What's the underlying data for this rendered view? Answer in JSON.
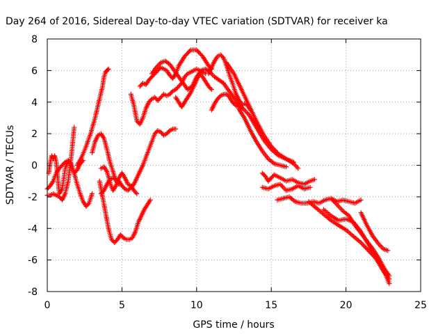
{
  "chart_data": {
    "type": "scatter",
    "title": "Day 264 of 2016, Sidereal Day-to-day VTEC variation (SDTVAR) for receiver ka",
    "xlabel": "GPS time / hours",
    "ylabel": "SDTVAR / TECUs",
    "xlim": [
      0,
      25
    ],
    "ylim": [
      -8,
      8
    ],
    "xticks": [
      0,
      5,
      10,
      15,
      20,
      25
    ],
    "yticks": [
      -8,
      -6,
      -4,
      -2,
      0,
      2,
      4,
      6,
      8
    ],
    "grid": true,
    "marker": "plus",
    "color": "#ff0000",
    "series": [
      {
        "x": [
          0.0,
          0.2,
          0.4,
          0.6,
          0.8,
          1.0,
          1.2,
          1.4,
          1.6,
          1.8,
          2.0,
          2.2,
          2.4,
          2.6,
          2.8,
          3.0
        ],
        "y": [
          -1.5,
          -1.3,
          -1.0,
          -0.5,
          -0.2,
          0.0,
          0.2,
          0.3,
          0.1,
          -0.5,
          -1.2,
          -1.8,
          -2.3,
          -2.6,
          -2.4,
          -1.8
        ]
      },
      {
        "x": [
          0.0,
          0.2,
          0.4,
          0.6,
          0.8,
          1.0,
          1.2,
          1.4,
          1.6,
          1.8
        ],
        "y": [
          -1.9,
          -1.9,
          -1.8,
          -1.9,
          -2.0,
          -2.2,
          -1.8,
          -1.0,
          0.5,
          2.4
        ]
      },
      {
        "x": [
          0.1,
          0.2,
          0.3,
          0.4,
          0.5,
          0.6,
          0.7,
          0.8,
          1.0,
          1.2,
          1.4,
          1.6,
          1.8,
          2.0,
          2.2,
          2.4
        ],
        "y": [
          -0.5,
          0.2,
          0.6,
          0.4,
          0.6,
          0.2,
          -0.8,
          -1.8,
          -1.5,
          -0.2,
          0.3,
          0.0,
          -0.5,
          -0.3,
          0.1,
          0.3
        ]
      },
      {
        "x": [
          2.0,
          2.3,
          2.6,
          2.9,
          3.2,
          3.5,
          3.7,
          3.8,
          3.9,
          4.0,
          4.1
        ],
        "y": [
          0.0,
          0.5,
          1.2,
          2.0,
          3.0,
          4.2,
          5.0,
          5.6,
          5.9,
          6.0,
          6.1
        ]
      },
      {
        "x": [
          3.0,
          3.2,
          3.4,
          3.6,
          3.8,
          4.0,
          4.2,
          4.4,
          4.6,
          4.8
        ],
        "y": [
          0.8,
          1.5,
          1.9,
          2.0,
          1.7,
          1.0,
          0.2,
          -0.4,
          -1.0,
          -1.2
        ]
      },
      {
        "x": [
          3.5,
          3.7,
          3.9,
          4.1,
          4.3,
          4.5,
          4.7,
          4.9,
          5.1,
          5.3,
          5.5,
          5.7,
          5.9,
          6.1,
          6.3,
          6.5,
          6.7,
          6.9
        ],
        "y": [
          -1.0,
          -2.0,
          -3.0,
          -4.0,
          -4.7,
          -4.9,
          -4.7,
          -4.4,
          -4.6,
          -4.7,
          -4.7,
          -4.6,
          -4.2,
          -3.6,
          -3.2,
          -2.8,
          -2.5,
          -2.2
        ]
      },
      {
        "x": [
          3.6,
          3.8,
          4.0,
          4.2,
          4.4,
          4.6,
          4.8,
          5.0,
          5.2,
          5.4,
          5.6,
          5.8,
          6.0
        ],
        "y": [
          -0.2,
          -0.1,
          -0.4,
          -1.1,
          -1.6,
          -1.3,
          -0.8,
          -0.5,
          -0.8,
          -1.2,
          -1.3,
          -1.6,
          -1.8
        ]
      },
      {
        "x": [
          3.6,
          3.8,
          4.0,
          4.2,
          4.4,
          4.6,
          4.8,
          5.0,
          5.2,
          5.4,
          5.6,
          5.8,
          6.0,
          6.2,
          6.4,
          6.6,
          6.8,
          7.0,
          7.2,
          7.4,
          7.6,
          7.8,
          8.0,
          8.2,
          8.4,
          8.6
        ],
        "y": [
          -1.8,
          -1.6,
          -1.2,
          -0.9,
          -0.8,
          -0.9,
          -1.0,
          -1.3,
          -1.5,
          -1.6,
          -1.4,
          -1.2,
          -0.8,
          -0.4,
          0.0,
          0.5,
          1.0,
          1.5,
          2.0,
          2.2,
          2.1,
          1.9,
          2.0,
          2.2,
          2.3,
          2.3
        ]
      },
      {
        "x": [
          5.6,
          5.8,
          6.0,
          6.2,
          6.4,
          6.6,
          6.8,
          7.0,
          7.2,
          7.4,
          7.6,
          7.8,
          8.0,
          8.2,
          8.4,
          8.6,
          8.8,
          9.0,
          9.2,
          9.4,
          9.6,
          9.8,
          10.0,
          10.2,
          10.4,
          10.6
        ],
        "y": [
          4.5,
          3.8,
          2.8,
          2.6,
          3.0,
          3.6,
          4.0,
          4.2,
          4.3,
          4.1,
          4.3,
          4.5,
          4.4,
          4.5,
          4.7,
          4.8,
          5.0,
          5.2,
          5.6,
          5.8,
          5.9,
          6.0,
          6.1,
          6.0,
          5.9,
          5.8
        ]
      },
      {
        "x": [
          6.2,
          6.4,
          6.6,
          6.8,
          7.0,
          7.2,
          7.4,
          7.6,
          7.8,
          8.0,
          8.2,
          8.4,
          8.6,
          8.8,
          9.0,
          9.2,
          9.4,
          9.6,
          9.8,
          10.0,
          10.2,
          10.4,
          10.6,
          10.8,
          11.0
        ],
        "y": [
          5.0,
          5.2,
          5.1,
          5.4,
          5.6,
          5.8,
          6.0,
          6.2,
          6.1,
          6.0,
          5.7,
          5.5,
          5.8,
          6.3,
          6.6,
          6.9,
          7.1,
          7.3,
          7.3,
          7.3,
          7.1,
          6.9,
          6.6,
          6.3,
          6.1
        ]
      },
      {
        "x": [
          7.0,
          7.3,
          7.6,
          7.9,
          8.2,
          8.5,
          8.8,
          9.1,
          9.4,
          9.7,
          10.0,
          10.3,
          10.6,
          10.9,
          11.2,
          11.5,
          11.8,
          12.1,
          12.4,
          12.7,
          13.0
        ],
        "y": [
          5.8,
          6.2,
          6.5,
          6.6,
          6.4,
          6.0,
          5.6,
          5.2,
          4.8,
          5.0,
          5.6,
          6.0,
          6.1,
          5.9,
          5.6,
          5.4,
          5.2,
          4.8,
          4.4,
          4.0,
          3.6
        ]
      },
      {
        "x": [
          8.6,
          8.8,
          9.0,
          9.2,
          9.4,
          9.6,
          9.8,
          10.0,
          10.2,
          10.4,
          10.6,
          10.8,
          11.0
        ],
        "y": [
          4.3,
          4.0,
          3.7,
          4.0,
          4.3,
          4.6,
          5.0,
          5.4,
          5.8,
          5.6,
          5.3,
          5.0,
          4.8
        ]
      },
      {
        "x": [
          10.8,
          11.0,
          11.2,
          11.4,
          11.6,
          11.8,
          12.0,
          12.2,
          12.4,
          12.6,
          12.8,
          13.0
        ],
        "y": [
          5.8,
          6.2,
          6.6,
          6.9,
          7.0,
          6.8,
          6.3,
          5.7,
          5.2,
          4.6,
          4.2,
          3.9
        ]
      },
      {
        "x": [
          11.0,
          11.2,
          11.4,
          11.6,
          11.8,
          12.0,
          12.2,
          12.4,
          12.6,
          12.8,
          13.0,
          13.2,
          13.4,
          13.6
        ],
        "y": [
          3.5,
          3.9,
          4.2,
          4.4,
          4.5,
          4.5,
          4.3,
          4.0,
          3.8,
          3.7,
          3.8,
          3.9,
          3.8,
          3.5
        ]
      },
      {
        "x": [
          12.0,
          12.5,
          13.0,
          13.5,
          14.0,
          14.5,
          15.0,
          15.5,
          16.0,
          16.5,
          16.8
        ],
        "y": [
          6.5,
          5.8,
          4.8,
          3.8,
          2.8,
          1.9,
          1.2,
          0.7,
          0.4,
          0.1,
          -0.2
        ]
      },
      {
        "x": [
          13.0,
          13.5,
          14.0,
          14.5,
          15.0,
          15.5,
          16.0,
          16.5
        ],
        "y": [
          3.7,
          3.2,
          2.4,
          1.6,
          1.0,
          0.6,
          0.4,
          0.2
        ]
      },
      {
        "x": [
          12.8,
          13.2,
          13.6,
          14.0,
          14.4,
          14.8,
          15.2,
          15.6,
          16.0
        ],
        "y": [
          3.6,
          3.0,
          2.2,
          1.5,
          0.9,
          0.4,
          0.1,
          0.0,
          -0.1
        ]
      },
      {
        "x": [
          14.4,
          14.6,
          14.8,
          15.0,
          15.2,
          15.6,
          16.0,
          16.4,
          16.8,
          17.2,
          17.6,
          17.9
        ],
        "y": [
          -0.5,
          -0.7,
          -1.0,
          -0.8,
          -0.6,
          -0.8,
          -1.0,
          -0.9,
          -1.1,
          -1.2,
          -1.0,
          -0.9
        ]
      },
      {
        "x": [
          14.4,
          14.8,
          15.2,
          15.6,
          16.0,
          16.4,
          16.8,
          17.2,
          17.6
        ],
        "y": [
          -1.4,
          -1.5,
          -1.3,
          -1.2,
          -1.6,
          -1.5,
          -1.3,
          -1.5,
          -1.4
        ]
      },
      {
        "x": [
          15.4,
          15.8,
          16.2,
          16.6,
          17.0,
          17.4,
          17.8,
          18.2,
          18.6,
          19.0,
          19.4,
          19.8,
          20.2,
          20.6,
          21.0
        ],
        "y": [
          -2.2,
          -2.1,
          -2.0,
          -2.3,
          -2.4,
          -2.4,
          -2.3,
          -2.4,
          -2.2,
          -2.1,
          -2.3,
          -2.2,
          -2.3,
          -2.4,
          -2.2
        ]
      },
      {
        "x": [
          17.5,
          18.0,
          18.5,
          19.0,
          19.5,
          20.0,
          20.5,
          21.0,
          21.5,
          22.0,
          22.5,
          22.9
        ],
        "y": [
          -2.3,
          -2.7,
          -3.1,
          -3.5,
          -3.8,
          -4.1,
          -4.5,
          -4.9,
          -5.4,
          -5.9,
          -6.7,
          -7.2
        ]
      },
      {
        "x": [
          18.5,
          19.0,
          19.5,
          20.0,
          20.5,
          21.0,
          21.5,
          22.0,
          22.5,
          22.9
        ],
        "y": [
          -2.8,
          -3.2,
          -3.5,
          -3.4,
          -3.6,
          -4.2,
          -5.0,
          -5.8,
          -6.6,
          -7.5
        ]
      },
      {
        "x": [
          19.0,
          19.4,
          19.8,
          20.2,
          20.6,
          21.0,
          21.4,
          21.8,
          22.2,
          22.6,
          22.9
        ],
        "y": [
          -2.1,
          -2.5,
          -2.9,
          -3.2,
          -3.8,
          -4.3,
          -4.8,
          -5.3,
          -5.9,
          -6.6,
          -7.0
        ]
      },
      {
        "x": [
          21.0,
          21.4,
          21.8,
          22.2,
          22.5,
          22.8
        ],
        "y": [
          -3.0,
          -3.8,
          -4.5,
          -5.0,
          -5.3,
          -5.4
        ]
      }
    ]
  }
}
